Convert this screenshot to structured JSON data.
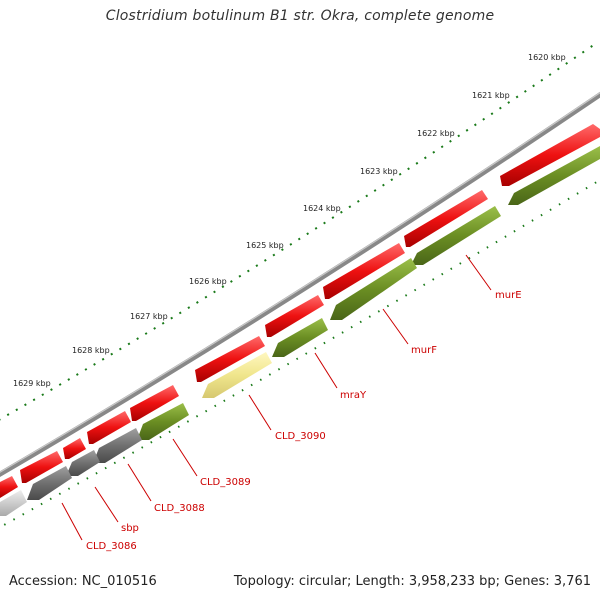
{
  "title": "Clostridium botulinum B1 str. Okra, complete genome",
  "accession_text": "Accession: NC_010516",
  "summary_text": "Topology: circular; Length: 3,958,233 bp; Genes: 3,761",
  "colors": {
    "backbone": "#8a8a8a",
    "forward_cds": "#ee1111",
    "reverse_cds": "#6b8e23",
    "gray_cds": "#707070",
    "pale_cds": "#f0e68c",
    "tick_dots": "#1a7a1a",
    "label": "#cc0000"
  },
  "scale_ticks": [
    "1620 kbp",
    "1621 kbp",
    "1622 kbp",
    "1623 kbp",
    "1624 kbp",
    "1625 kbp",
    "1626 kbp",
    "1627 kbp",
    "1628 kbp",
    "1629 kbp"
  ],
  "gene_labels": [
    "murE",
    "murF",
    "mraY",
    "CLD_3090",
    "CLD_3089",
    "CLD_3088",
    "sbp",
    "CLD_3086"
  ]
}
